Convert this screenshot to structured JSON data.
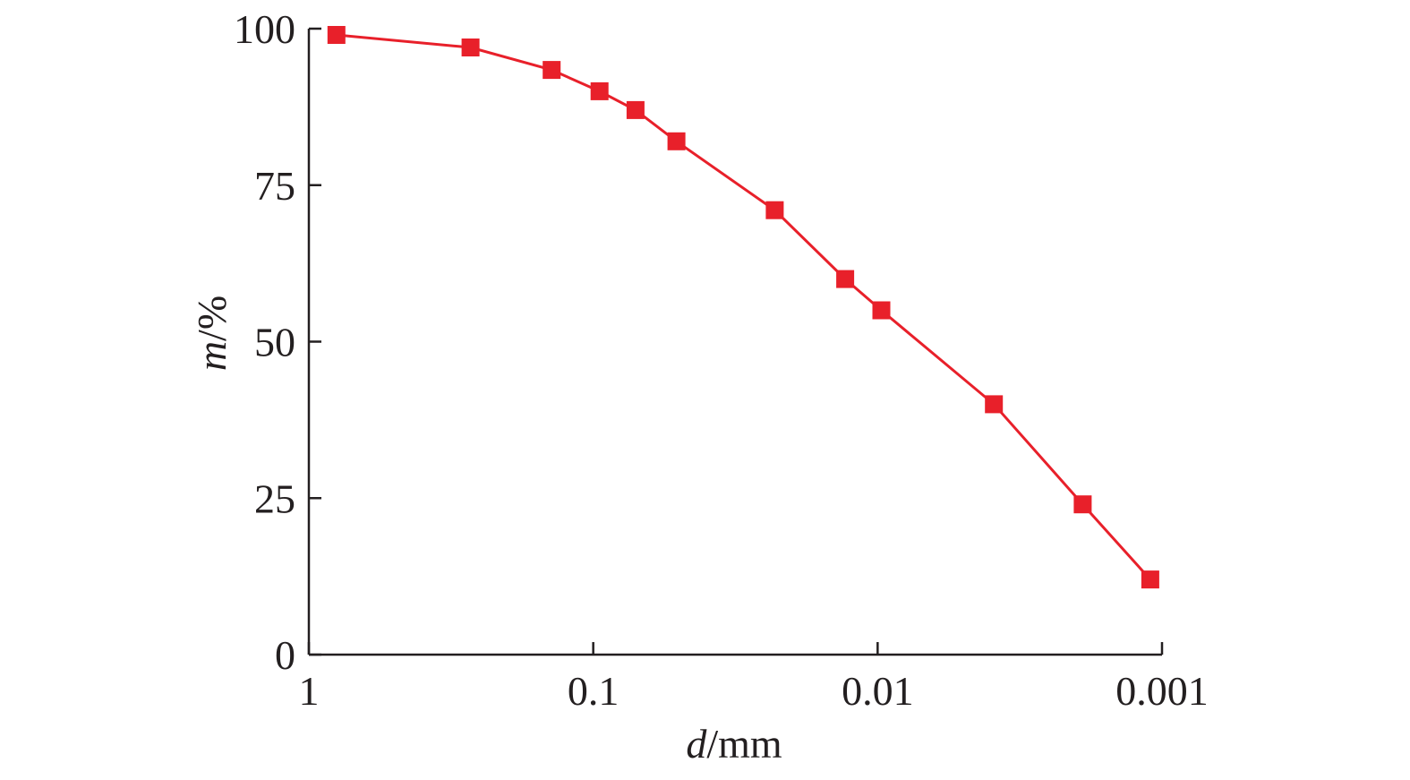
{
  "chart_data": {
    "type": "line",
    "x_scale": "log",
    "x_reversed": true,
    "xlim": [
      1,
      0.001
    ],
    "ylim": [
      0,
      100
    ],
    "x_ticks": [
      {
        "value": 1,
        "label": "1"
      },
      {
        "value": 0.1,
        "label": "0.1"
      },
      {
        "value": 0.01,
        "label": "0.01"
      },
      {
        "value": 0.001,
        "label": "0.001"
      }
    ],
    "y_ticks": [
      {
        "value": 0,
        "label": "0"
      },
      {
        "value": 25,
        "label": "25"
      },
      {
        "value": 50,
        "label": "50"
      },
      {
        "value": 75,
        "label": "75"
      },
      {
        "value": 100,
        "label": "100"
      }
    ],
    "xlabel": {
      "var": "d",
      "unit": "/mm"
    },
    "ylabel": {
      "var": "m",
      "unit": "/%"
    },
    "grid": false,
    "legend": "none",
    "series": [
      {
        "color": "#e8202a",
        "marker": "square",
        "points": [
          {
            "x": 0.8,
            "y": 99
          },
          {
            "x": 0.27,
            "y": 97
          },
          {
            "x": 0.14,
            "y": 93.4
          },
          {
            "x": 0.095,
            "y": 90
          },
          {
            "x": 0.071,
            "y": 87
          },
          {
            "x": 0.051,
            "y": 82
          },
          {
            "x": 0.023,
            "y": 71
          },
          {
            "x": 0.013,
            "y": 60
          },
          {
            "x": 0.0097,
            "y": 55
          },
          {
            "x": 0.0039,
            "y": 40
          },
          {
            "x": 0.0019,
            "y": 24
          },
          {
            "x": 0.0011,
            "y": 12
          }
        ]
      }
    ]
  }
}
